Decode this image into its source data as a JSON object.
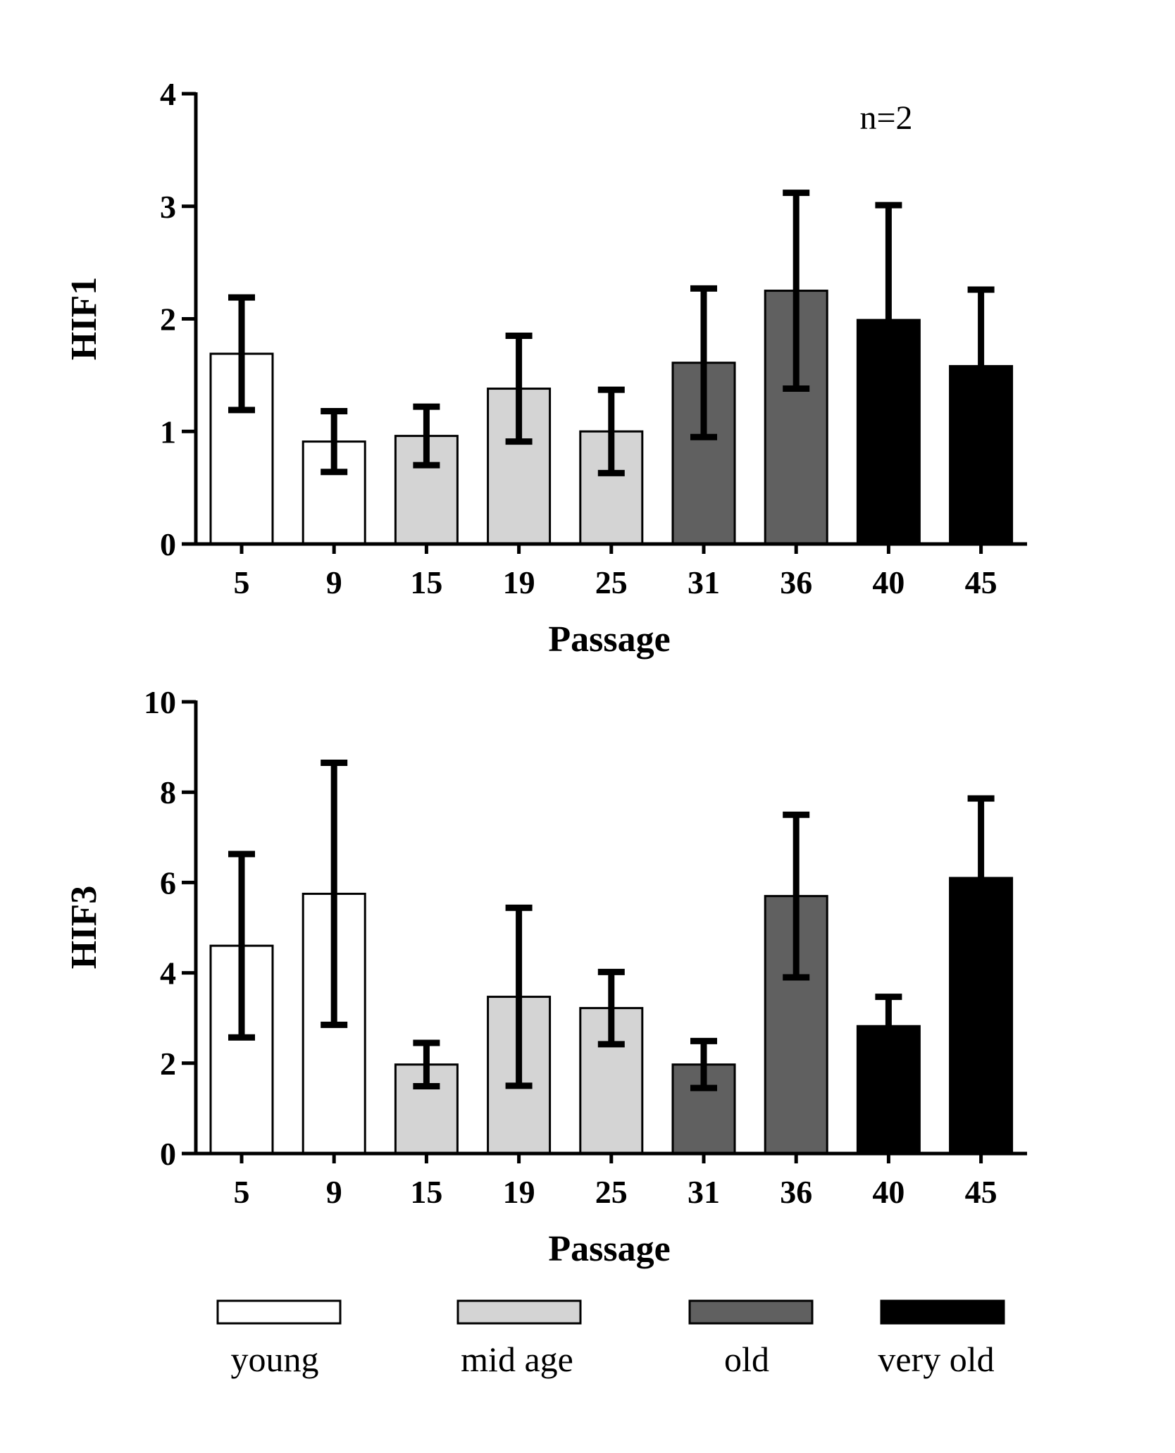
{
  "chart_data": [
    {
      "type": "bar",
      "categories": [
        "5",
        "9",
        "15",
        "19",
        "25",
        "31",
        "36",
        "40",
        "45"
      ],
      "groups": [
        "young",
        "young",
        "mid age",
        "mid age",
        "mid age",
        "old",
        "old",
        "very old",
        "very old"
      ],
      "values": [
        1.69,
        0.91,
        0.96,
        1.38,
        1.0,
        1.61,
        2.25,
        1.99,
        1.58
      ],
      "error": [
        0.5,
        0.27,
        0.26,
        0.47,
        0.37,
        0.66,
        0.87,
        1.02,
        0.68
      ],
      "xlabel": "Passage",
      "ylabel": "HIF1",
      "ylim": [
        0,
        4
      ],
      "yticks": [
        0,
        1,
        2,
        3,
        4
      ],
      "annotation": "n=2"
    },
    {
      "type": "bar",
      "categories": [
        "5",
        "9",
        "15",
        "19",
        "25",
        "31",
        "36",
        "40",
        "45"
      ],
      "groups": [
        "young",
        "young",
        "mid age",
        "mid age",
        "mid age",
        "old",
        "old",
        "very old",
        "very old"
      ],
      "values": [
        4.6,
        5.75,
        1.97,
        3.47,
        3.22,
        1.97,
        5.7,
        2.82,
        6.1
      ],
      "error": [
        2.03,
        2.9,
        0.48,
        1.97,
        0.8,
        0.52,
        1.8,
        0.65,
        1.76
      ],
      "xlabel": "Passage",
      "ylabel": "HIF3",
      "ylim": [
        0,
        10
      ],
      "yticks": [
        0,
        2,
        4,
        6,
        8,
        10
      ]
    }
  ],
  "legend": {
    "items": [
      {
        "label": "young",
        "color": "#ffffff"
      },
      {
        "label": "mid age",
        "color": "#d4d4d4"
      },
      {
        "label": "old",
        "color": "#606060"
      },
      {
        "label": "very old",
        "color": "#000000"
      }
    ]
  }
}
